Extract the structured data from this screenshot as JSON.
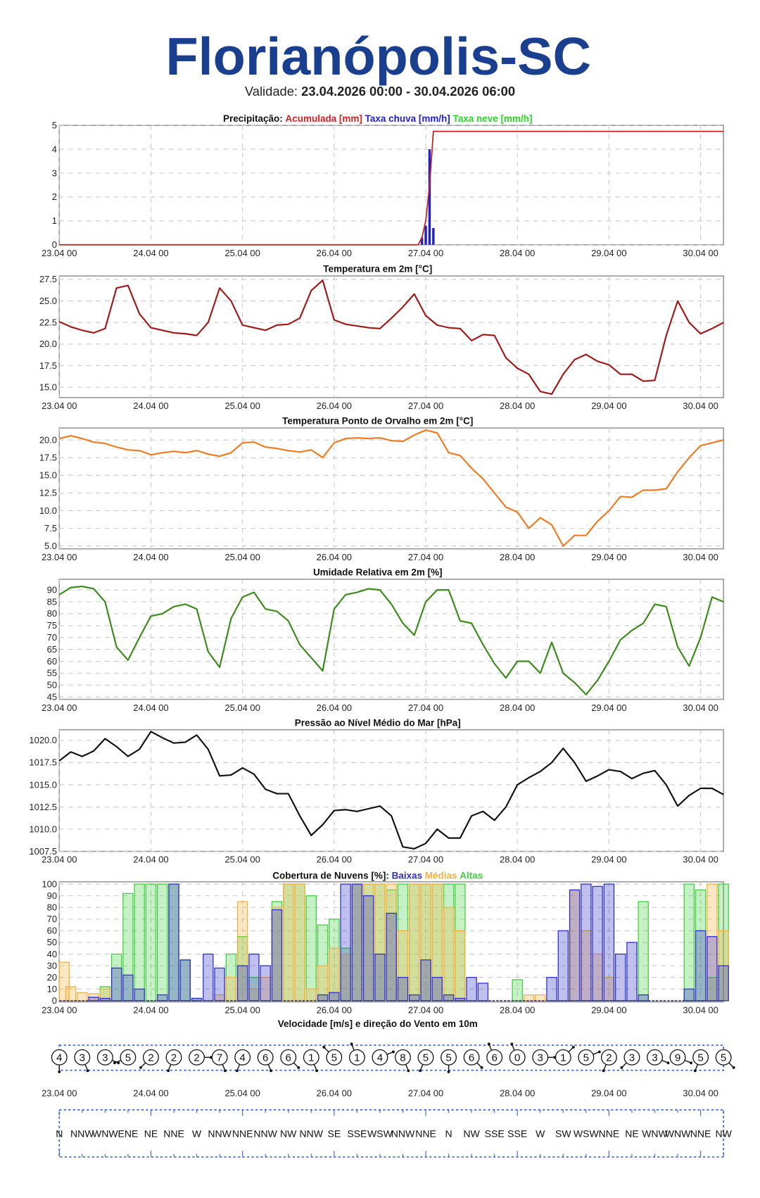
{
  "header": {
    "title": "Florianópolis-SC",
    "validity_label": "Validade:",
    "validity_range": "23.04.2026 00:00 - 30.04.2026 06:00"
  },
  "x_ticks": [
    "23.04 00",
    "24.04 00",
    "25.04 00",
    "26.04 00",
    "27.04 00",
    "28.04 00",
    "29.04 00",
    "30.04 00"
  ],
  "chart_data": [
    {
      "id": "precip",
      "type": "line+bar",
      "title": "Precipitação:",
      "legend": [
        {
          "label": "Acumulada [mm]",
          "color": "#d42020"
        },
        {
          "label": "Taxa chuva [mm/h]",
          "color": "#2020c8"
        },
        {
          "label": "Taxa neve [mm/h]",
          "color": "#30d030"
        }
      ],
      "x_hours": [
        0,
        94,
        95,
        96,
        97,
        98,
        99,
        174
      ],
      "accumulated": [
        0,
        0,
        0.3,
        1.0,
        2.5,
        4.75,
        4.75,
        4.75
      ],
      "rain_rate_hours": [
        95,
        96,
        97,
        98
      ],
      "rain_rate": [
        0.3,
        0.8,
        4.0,
        0.7
      ],
      "ylim": [
        0,
        5
      ],
      "yticks": [
        "0",
        "1",
        "2",
        "3",
        "4",
        "5"
      ],
      "ytick_values": [
        0,
        1,
        2,
        3,
        4,
        5
      ]
    },
    {
      "id": "temp",
      "type": "line",
      "title": "Temperatura em 2m [°C]",
      "color": "#a01818",
      "step_hours": 3,
      "values": [
        22.6,
        22.0,
        21.6,
        21.3,
        21.8,
        26.5,
        26.8,
        23.5,
        21.9,
        21.6,
        21.3,
        21.2,
        21.0,
        22.5,
        26.5,
        25.0,
        22.2,
        21.9,
        21.6,
        22.2,
        22.3,
        23.0,
        26.2,
        27.4,
        22.8,
        22.3,
        22.1,
        21.9,
        21.8,
        23.0,
        24.3,
        25.8,
        23.3,
        22.2,
        21.9,
        21.8,
        20.4,
        21.1,
        21.0,
        18.4,
        17.2,
        16.5,
        14.5,
        14.2,
        16.5,
        18.2,
        18.8,
        18.0,
        17.6,
        16.5,
        16.5,
        15.7,
        15.8,
        21.0,
        25.0,
        22.5,
        21.2,
        21.8,
        22.5
      ],
      "ylim": [
        13.8,
        27.9
      ],
      "yticks": [
        "15.0",
        "17.5",
        "20.0",
        "22.5",
        "25.0",
        "27.5"
      ],
      "ytick_values": [
        15,
        17.5,
        20,
        22.5,
        25,
        27.5
      ]
    },
    {
      "id": "dew",
      "type": "line",
      "title": "Temperatura Ponto de Orvalho em 2m [°C]",
      "color": "#f07a20",
      "step_hours": 3,
      "values": [
        20.2,
        20.6,
        20.2,
        19.7,
        19.5,
        19.0,
        18.6,
        18.5,
        17.9,
        18.2,
        18.4,
        18.2,
        18.5,
        18.0,
        17.7,
        18.2,
        19.6,
        19.7,
        19.0,
        18.8,
        18.5,
        18.3,
        18.6,
        17.5,
        19.6,
        20.2,
        20.3,
        20.2,
        20.3,
        19.9,
        19.8,
        20.7,
        21.4,
        21.0,
        18.2,
        17.8,
        16.0,
        14.5,
        12.5,
        10.5,
        9.8,
        7.5,
        9.0,
        8.0,
        5.0,
        6.5,
        6.5,
        8.5,
        10.0,
        12.0,
        11.9,
        12.9,
        12.9,
        13.1,
        15.5,
        17.5,
        19.2,
        19.6,
        20.0
      ],
      "ylim": [
        4.6,
        21.7
      ],
      "yticks": [
        "5.0",
        "7.5",
        "10.0",
        "12.5",
        "15.0",
        "17.5",
        "20.0"
      ],
      "ytick_values": [
        5,
        7.5,
        10,
        12.5,
        15,
        17.5,
        20
      ]
    },
    {
      "id": "rh",
      "type": "line",
      "title": "Umidade Relativa em 2m [%]",
      "color": "#3a8a1a",
      "step_hours": 3,
      "values": [
        88,
        91,
        91.5,
        90.5,
        85,
        66,
        60.5,
        70,
        79,
        80,
        83,
        84,
        82,
        64,
        57.5,
        78,
        87,
        89,
        82,
        81,
        77,
        67,
        61.5,
        56,
        82,
        88,
        89,
        90.5,
        90,
        84,
        76,
        71,
        85,
        90,
        90,
        77,
        76,
        67,
        59,
        53,
        60,
        60,
        55,
        68,
        55,
        51,
        46,
        52,
        60,
        69,
        73,
        76,
        84,
        83,
        66,
        58,
        70,
        87,
        85
      ],
      "ylim": [
        44,
        94.5
      ],
      "yticks": [
        "45",
        "50",
        "55",
        "60",
        "65",
        "70",
        "75",
        "80",
        "85",
        "90"
      ],
      "ytick_values": [
        45,
        50,
        55,
        60,
        65,
        70,
        75,
        80,
        85,
        90
      ]
    },
    {
      "id": "pressure",
      "type": "line",
      "title": "Pressão ao Nível Médio do Mar [hPa]",
      "color": "#111111",
      "step_hours": 3,
      "values": [
        1017.7,
        1018.7,
        1018.2,
        1018.8,
        1020.2,
        1019.3,
        1018.2,
        1019.0,
        1021.0,
        1020.3,
        1019.7,
        1019.8,
        1020.6,
        1019.0,
        1016.0,
        1016.1,
        1016.9,
        1016.2,
        1014.5,
        1014.0,
        1014.0,
        1011.5,
        1009.3,
        1010.5,
        1012.1,
        1012.2,
        1012.0,
        1012.3,
        1012.6,
        1011.5,
        1008.0,
        1007.8,
        1008.4,
        1010.0,
        1009.0,
        1009.0,
        1011.5,
        1012.0,
        1011.0,
        1012.5,
        1015.0,
        1015.8,
        1016.5,
        1017.5,
        1019.1,
        1017.5,
        1015.4,
        1016.0,
        1016.7,
        1016.5,
        1015.7,
        1016.3,
        1016.6,
        1015.0,
        1012.6,
        1013.8,
        1014.6,
        1014.6,
        1013.9
      ],
      "ylim": [
        1007.5,
        1021.2
      ],
      "yticks": [
        "1007.5",
        "1010.0",
        "1012.5",
        "1015.0",
        "1017.5",
        "1020.0"
      ],
      "ytick_values": [
        1007.5,
        1010,
        1012.5,
        1015,
        1017.5,
        1020
      ]
    },
    {
      "id": "clouds",
      "type": "bar",
      "title": "Cobertura de Nuvens [%]:",
      "step_hours": 3,
      "series": [
        {
          "name": "Altas",
          "color": "#40d040",
          "values": [
            0,
            0,
            0,
            0,
            12,
            40,
            92,
            100,
            100,
            100,
            100,
            35,
            2,
            0,
            0,
            40,
            55,
            20,
            0,
            85,
            100,
            100,
            90,
            65,
            70,
            45,
            100,
            100,
            100,
            95,
            100,
            100,
            100,
            100,
            100,
            100,
            0,
            0,
            0,
            0,
            18,
            0,
            0,
            0,
            0,
            0,
            0,
            0,
            0,
            0,
            0,
            85,
            0,
            0,
            0,
            100,
            95,
            20,
            100
          ]
        },
        {
          "name": "Médias",
          "color": "#f5b040",
          "values": [
            33,
            12,
            7,
            6,
            10,
            0,
            0,
            0,
            0,
            0,
            0,
            0,
            0,
            0,
            5,
            20,
            85,
            10,
            20,
            80,
            100,
            100,
            10,
            30,
            45,
            40,
            100,
            100,
            100,
            100,
            60,
            100,
            100,
            100,
            80,
            60,
            0,
            0,
            0,
            0,
            0,
            5,
            5,
            0,
            0,
            95,
            60,
            40,
            20,
            0,
            0,
            0,
            0,
            0,
            0,
            0,
            0,
            100,
            60
          ]
        },
        {
          "name": "Baixas",
          "color": "#3030c8",
          "values": [
            0,
            0,
            0,
            3,
            2,
            28,
            22,
            10,
            0,
            5,
            100,
            35,
            2,
            40,
            28,
            0,
            30,
            40,
            30,
            78,
            0,
            0,
            0,
            5,
            7,
            100,
            100,
            90,
            40,
            75,
            20,
            5,
            35,
            20,
            5,
            2,
            20,
            15,
            0,
            0,
            0,
            0,
            0,
            20,
            60,
            95,
            100,
            98,
            100,
            40,
            50,
            5,
            0,
            0,
            0,
            10,
            60,
            55,
            30
          ]
        }
      ],
      "ylim": [
        -1,
        102
      ],
      "yticks": [
        "0",
        "10",
        "20",
        "30",
        "40",
        "50",
        "60",
        "70",
        "80",
        "90",
        "100"
      ],
      "ytick_values": [
        0,
        10,
        20,
        30,
        40,
        50,
        60,
        70,
        80,
        90,
        100
      ]
    },
    {
      "id": "wind",
      "type": "table",
      "title": "Velocidade [m/s] e direção do Vento em 10m",
      "step_hours": 6,
      "speeds": [
        "4",
        "3",
        "3",
        "5",
        "2",
        "2",
        "2",
        "7",
        "4",
        "6",
        "6",
        "1",
        "5",
        "1",
        "4",
        "8",
        "5",
        "5",
        "6",
        "6",
        "0",
        "3",
        "1",
        "5",
        "2",
        "3",
        "3",
        "9",
        "5",
        "5"
      ],
      "directions": [
        "N",
        "NNW",
        "WNW",
        "ENE",
        "NE",
        "NNE",
        "W",
        "NNW",
        "NNE",
        "NNW",
        "NW",
        "NNW",
        "SE",
        "SSE",
        "WSW",
        "NNW",
        "NNE",
        "N",
        "NW",
        "SSE",
        "SSE",
        "W",
        "SW",
        "WSW",
        "NNE",
        "NE",
        "WNW",
        "WNW",
        "NNE",
        "NW"
      ]
    }
  ]
}
